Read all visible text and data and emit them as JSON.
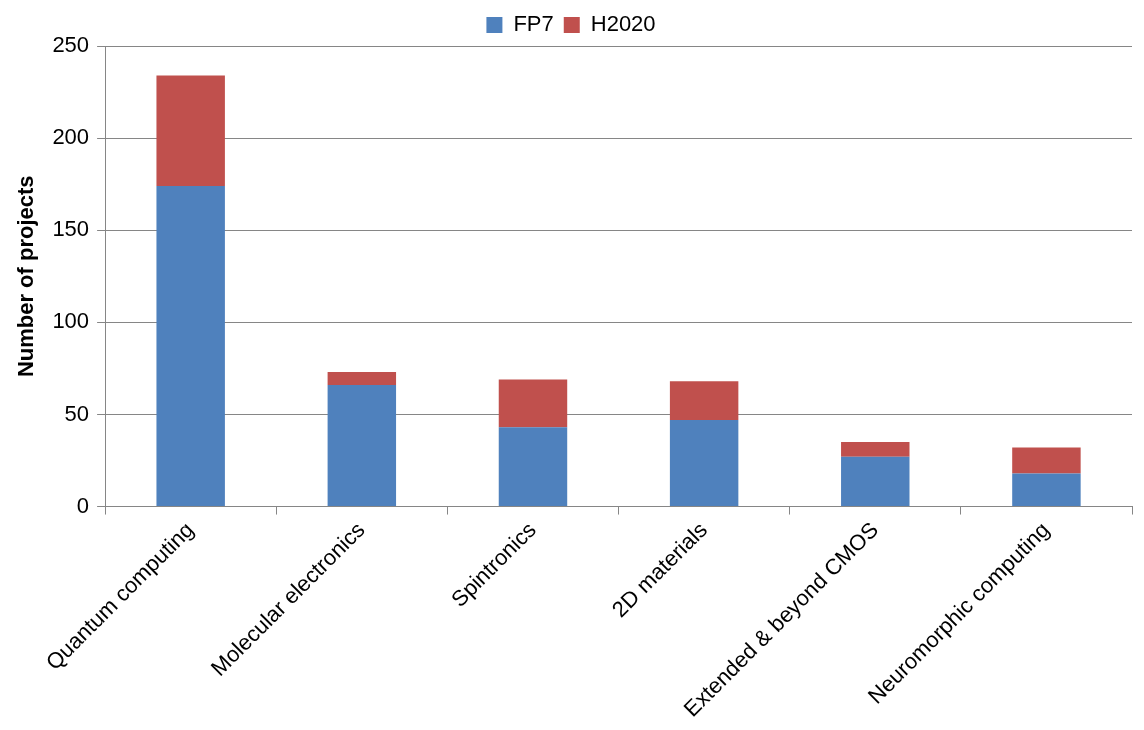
{
  "chart_data": {
    "type": "bar",
    "stacked": true,
    "ylabel": "Number of projects",
    "categories": [
      "Quantum computing",
      "Molecular electronics",
      "Spintronics",
      "2D materials",
      "Extended & beyond CMOS",
      "Neuromorphic computing"
    ],
    "series": [
      {
        "name": "FP7",
        "color": "#4f81bd",
        "values": [
          174,
          66,
          43,
          47,
          27,
          18
        ]
      },
      {
        "name": "H2020",
        "color": "#c0504d",
        "values": [
          60,
          7,
          26,
          21,
          8,
          14
        ]
      }
    ],
    "ylim": [
      0,
      250
    ],
    "yticks": [
      0,
      50,
      100,
      150,
      200,
      250
    ],
    "grid": "y",
    "legend": "top"
  }
}
